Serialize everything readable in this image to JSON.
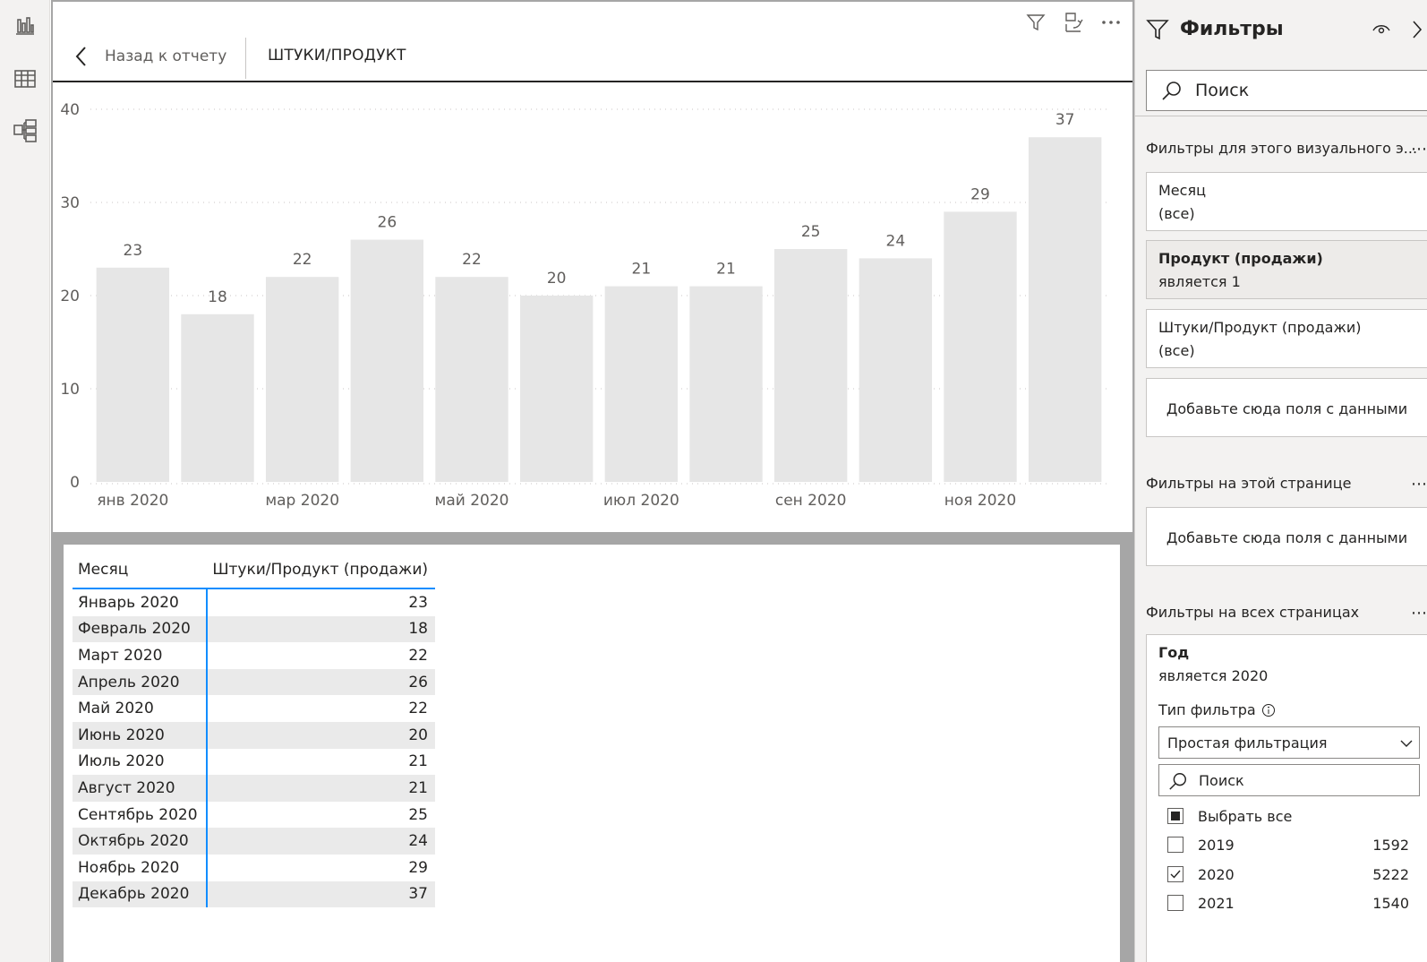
{
  "nav": {
    "icons": [
      "report-view-icon",
      "data-view-icon",
      "model-view-icon"
    ]
  },
  "visual_header": {
    "back_label": "Назад к отчету",
    "title": "ШТУКИ/ПРОДУКТ",
    "icons": [
      "filter-icon",
      "focus-mode-icon",
      "more-options-icon"
    ]
  },
  "chart_data": {
    "type": "bar",
    "title": "ШТУКИ/ПРОДУКТ",
    "categories": [
      "янв 2020",
      "фев 2020",
      "мар 2020",
      "апр 2020",
      "май 2020",
      "июн 2020",
      "июл 2020",
      "авг 2020",
      "сен 2020",
      "окт 2020",
      "ноя 2020",
      "дек 2020"
    ],
    "x_tick_labels": [
      "янв 2020",
      "",
      "мар 2020",
      "",
      "май 2020",
      "",
      "июл 2020",
      "",
      "сен 2020",
      "",
      "ноя 2020",
      ""
    ],
    "values": [
      23,
      18,
      22,
      26,
      22,
      20,
      21,
      21,
      25,
      24,
      29,
      37
    ],
    "data_labels": [
      "23",
      "18",
      "22",
      "26",
      "22",
      "20",
      "21",
      "21",
      "25",
      "24",
      "29",
      "37"
    ],
    "y_ticks": [
      "0",
      "10",
      "20",
      "30",
      "40"
    ],
    "ylim": [
      0,
      40
    ],
    "grid": true,
    "bar_color": "#e6e6e6",
    "xlabel": "",
    "ylabel": ""
  },
  "table": {
    "headers": [
      "Месяц",
      "Штуки/Продукт (продажи)"
    ],
    "rows": [
      [
        "Январь 2020",
        "23"
      ],
      [
        "Февраль 2020",
        "18"
      ],
      [
        "Март 2020",
        "22"
      ],
      [
        "Апрель 2020",
        "26"
      ],
      [
        "Май 2020",
        "22"
      ],
      [
        "Июнь 2020",
        "20"
      ],
      [
        "Июль 2020",
        "21"
      ],
      [
        "Август 2020",
        "21"
      ],
      [
        "Сентябрь 2020",
        "25"
      ],
      [
        "Октябрь 2020",
        "24"
      ],
      [
        "Ноябрь 2020",
        "29"
      ],
      [
        "Декабрь 2020",
        "37"
      ]
    ],
    "accent_color": "#118dff"
  },
  "filters": {
    "title": "Фильтры",
    "search_placeholder": "Поиск",
    "visual_section": {
      "label": "Фильтры для этого визуального э...",
      "dots": "⋯",
      "cards": [
        {
          "name": "Месяц",
          "value": "(все)"
        },
        {
          "name": "Продукт (продажи)",
          "value": "является 1"
        },
        {
          "name": "Штуки/Продукт (продажи)",
          "value": "(все)"
        }
      ],
      "drop_text": "Добавьте сюда поля с данными"
    },
    "page_section": {
      "label": "Фильтры на этой странице",
      "dots": "⋯",
      "drop_text": "Добавьте сюда поля с данными"
    },
    "all_pages_section": {
      "label": "Фильтры на всех страницах",
      "dots": "⋯",
      "year_card": {
        "name": "Год",
        "value": "является 2020",
        "filter_type_label": "Тип фильтра",
        "filter_type_value": "Простая фильтрация",
        "search_placeholder": "Поиск",
        "select_all": "Выбрать все",
        "options": [
          {
            "label": "2019",
            "count": "1592",
            "checked": false
          },
          {
            "label": "2020",
            "count": "5222",
            "checked": true
          },
          {
            "label": "2021",
            "count": "1540",
            "checked": false
          }
        ]
      }
    }
  }
}
